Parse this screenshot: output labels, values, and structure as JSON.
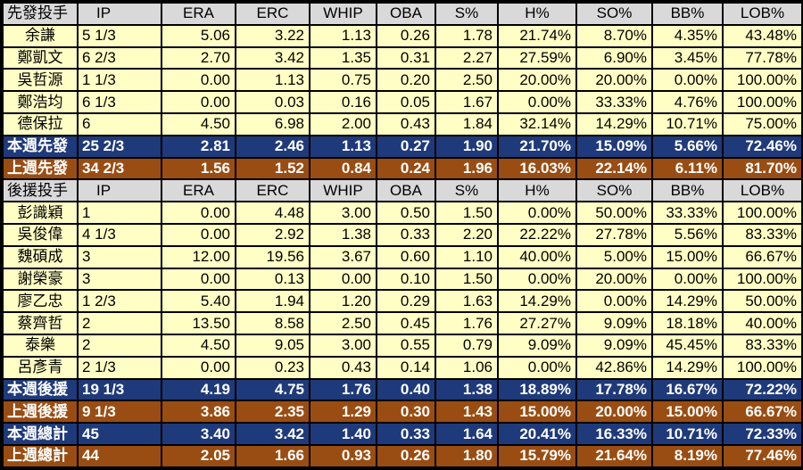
{
  "starters": {
    "header": [
      "先發投手",
      "IP",
      "ERA",
      "ERC",
      "WHIP",
      "OBA",
      "S%",
      "H%",
      "SO%",
      "BB%",
      "LOB%"
    ],
    "rows": [
      [
        "余謙",
        "5 1/3",
        "5.06",
        "3.22",
        "1.13",
        "0.26",
        "1.78",
        "21.74%",
        "8.70%",
        "4.35%",
        "43.48%"
      ],
      [
        "鄭凱文",
        "6 2/3",
        "2.70",
        "3.42",
        "1.35",
        "0.31",
        "2.27",
        "27.59%",
        "6.90%",
        "3.45%",
        "77.78%"
      ],
      [
        "吳哲源",
        "1 1/3",
        "0.00",
        "1.13",
        "0.75",
        "0.20",
        "2.50",
        "20.00%",
        "20.00%",
        "0.00%",
        "100.00%"
      ],
      [
        "鄭浩均",
        "6 1/3",
        "0.00",
        "0.03",
        "0.16",
        "0.05",
        "1.67",
        "0.00%",
        "33.33%",
        "4.76%",
        "100.00%"
      ],
      [
        "德保拉",
        "6",
        "4.50",
        "6.98",
        "2.00",
        "0.43",
        "1.84",
        "32.14%",
        "14.29%",
        "10.71%",
        "75.00%"
      ]
    ],
    "this_week": [
      "本週先發",
      "25 2/3",
      "2.81",
      "2.46",
      "1.13",
      "0.27",
      "1.90",
      "21.70%",
      "15.09%",
      "5.66%",
      "72.46%"
    ],
    "last_week": [
      "上週先發",
      "34 2/3",
      "1.56",
      "1.52",
      "0.84",
      "0.24",
      "1.96",
      "16.03%",
      "22.14%",
      "6.11%",
      "81.70%"
    ]
  },
  "relievers": {
    "header": [
      "後援投手",
      "IP",
      "ERA",
      "ERC",
      "WHIP",
      "OBA",
      "S%",
      "H%",
      "SO%",
      "BB%",
      "LOB%"
    ],
    "rows": [
      [
        "彭識穎",
        "1",
        "0.00",
        "4.48",
        "3.00",
        "0.50",
        "1.50",
        "0.00%",
        "50.00%",
        "33.33%",
        "100.00%"
      ],
      [
        "吳俊偉",
        "4 1/3",
        "0.00",
        "2.92",
        "1.38",
        "0.33",
        "2.20",
        "22.22%",
        "27.78%",
        "5.56%",
        "83.33%"
      ],
      [
        "魏碩成",
        "3",
        "12.00",
        "19.56",
        "3.67",
        "0.60",
        "1.10",
        "40.00%",
        "5.00%",
        "15.00%",
        "66.67%"
      ],
      [
        "謝榮豪",
        "3",
        "0.00",
        "0.13",
        "0.00",
        "0.10",
        "1.50",
        "0.00%",
        "20.00%",
        "0.00%",
        "100.00%"
      ],
      [
        "廖乙忠",
        "1 2/3",
        "5.40",
        "1.94",
        "1.20",
        "0.29",
        "1.63",
        "14.29%",
        "0.00%",
        "14.29%",
        "50.00%"
      ],
      [
        "蔡齊哲",
        "2",
        "13.50",
        "8.58",
        "2.50",
        "0.45",
        "1.76",
        "27.27%",
        "9.09%",
        "18.18%",
        "40.00%"
      ],
      [
        "泰樂",
        "2",
        "4.50",
        "9.05",
        "3.00",
        "0.55",
        "0.79",
        "9.09%",
        "9.09%",
        "45.45%",
        "83.33%"
      ],
      [
        "呂彥青",
        "2 1/3",
        "0.00",
        "0.23",
        "0.43",
        "0.14",
        "1.06",
        "0.00%",
        "42.86%",
        "14.29%",
        "100.00%"
      ]
    ],
    "this_week": [
      "本週後援",
      "19 1/3",
      "4.19",
      "4.75",
      "1.76",
      "0.40",
      "1.38",
      "18.89%",
      "17.78%",
      "16.67%",
      "72.22%"
    ],
    "last_week": [
      "上週後援",
      "9 1/3",
      "3.86",
      "2.35",
      "1.29",
      "0.30",
      "1.43",
      "15.00%",
      "20.00%",
      "15.00%",
      "66.67%"
    ]
  },
  "totals": {
    "this_week": [
      "本週總計",
      "45",
      "3.40",
      "3.42",
      "1.40",
      "0.33",
      "1.64",
      "20.41%",
      "16.33%",
      "10.71%",
      "72.33%"
    ],
    "last_week": [
      "上週總計",
      "44",
      "2.05",
      "1.66",
      "0.93",
      "0.26",
      "1.80",
      "15.79%",
      "21.64%",
      "8.19%",
      "77.46%"
    ]
  },
  "colors": {
    "header_bg": "#d9d9d9",
    "player_row_bg": "#ffffc5",
    "this_week_bg": "#1f3a7a",
    "last_week_bg": "#9a4d12",
    "grid": "#000000"
  }
}
